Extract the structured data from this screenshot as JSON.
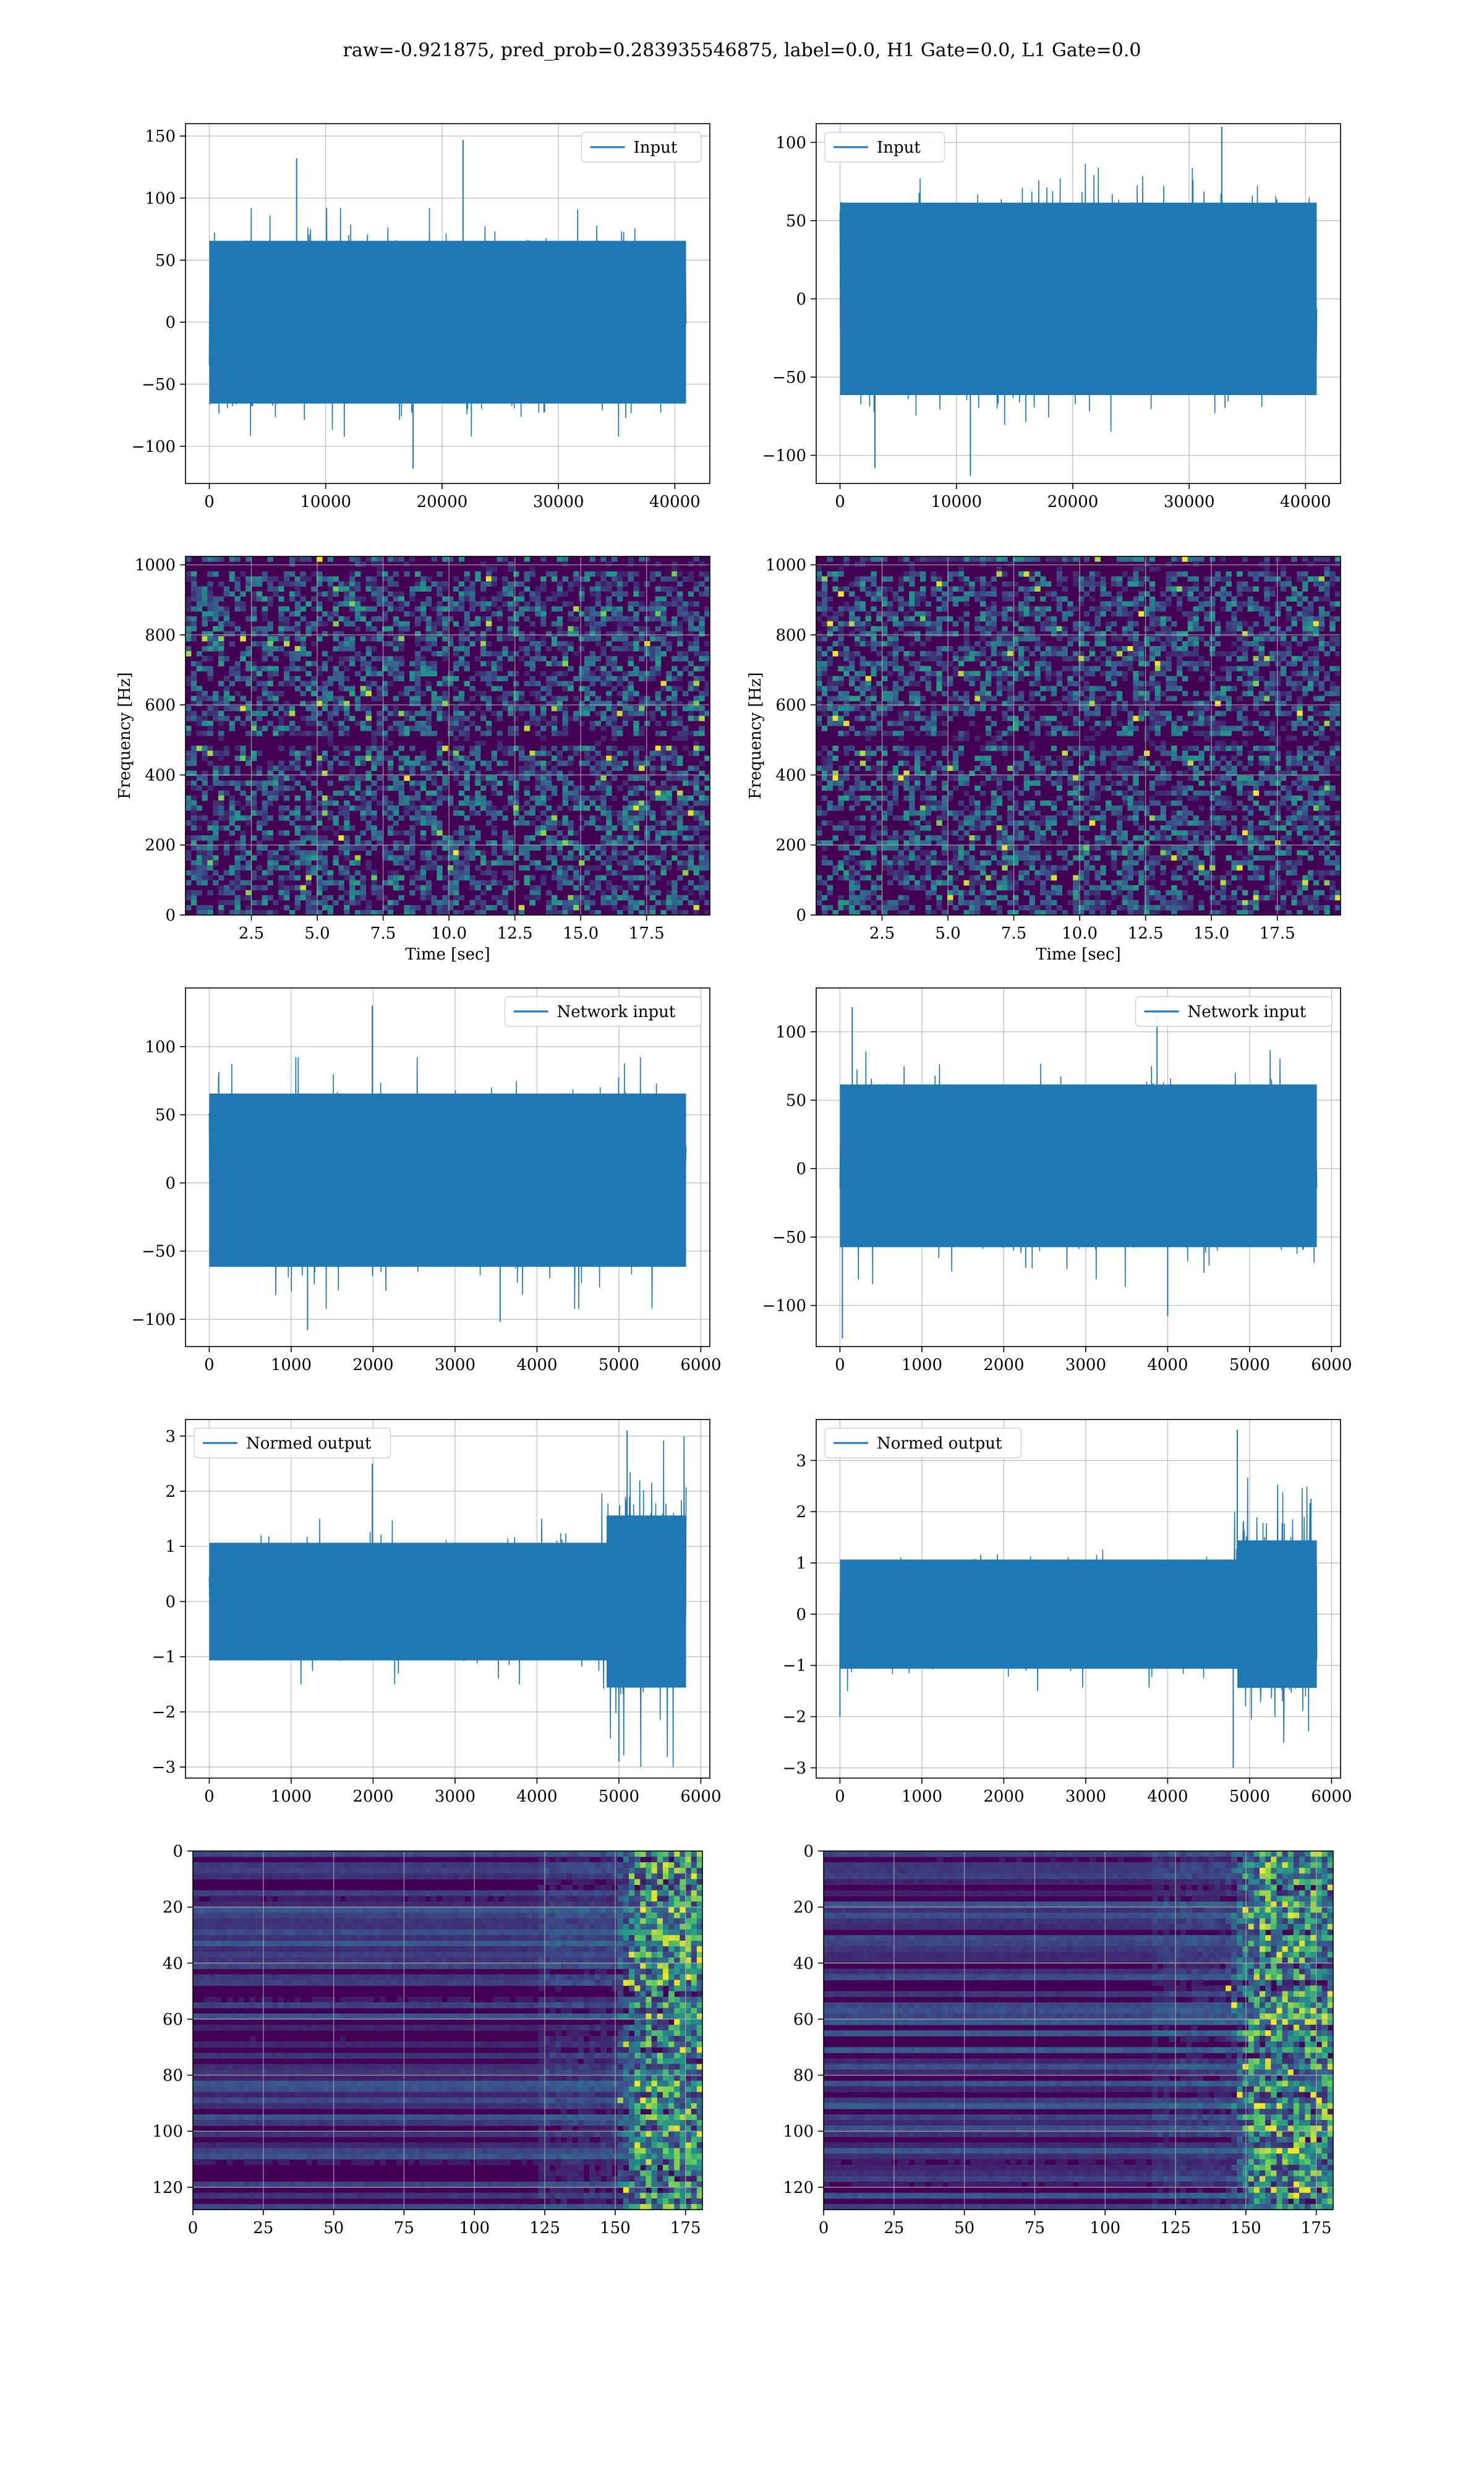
{
  "figure": {
    "title": "raw=-0.921875, pred_prob=0.283935546875, label=0.0, H1 Gate=0.0, L1 Gate=0.0"
  },
  "colors": {
    "line": "#1f77b4",
    "grid": "#b0b0b0",
    "heat_low": "#440154",
    "heat_mid": "#31688e",
    "heat_high": "#35b779",
    "heat_peak": "#fde725"
  },
  "chart_data": [
    {
      "type": "line",
      "panel": "row1-left",
      "legend": "Input",
      "legend_loc": "upper right",
      "xlim": [
        -2048,
        43008
      ],
      "ylim": [
        -130,
        160
      ],
      "xticks": [
        0,
        10000,
        20000,
        30000,
        40000
      ],
      "yticks": [
        -100,
        -50,
        0,
        50,
        100,
        150
      ],
      "x_range": [
        0,
        40960
      ],
      "samples": 1400,
      "envelope": [
        -80,
        80
      ],
      "sigma": 30,
      "peaks": [
        {
          "x": 21800,
          "y": 147
        },
        {
          "x": 7500,
          "y": 132
        },
        {
          "x": 17500,
          "y": -118
        }
      ],
      "grid": true,
      "seed": 11,
      "xlabel": "",
      "ylabel": ""
    },
    {
      "type": "line",
      "panel": "row1-right",
      "legend": "Input",
      "legend_loc": "upper left",
      "xlim": [
        -2048,
        43008
      ],
      "ylim": [
        -118,
        112
      ],
      "xticks": [
        0,
        10000,
        20000,
        30000,
        40000
      ],
      "yticks": [
        -100,
        -50,
        0,
        50,
        100
      ],
      "x_range": [
        0,
        40960
      ],
      "samples": 1400,
      "envelope": [
        -75,
        75
      ],
      "sigma": 28,
      "peaks": [
        {
          "x": 32800,
          "y": 110
        },
        {
          "x": 11200,
          "y": -113
        },
        {
          "x": 3000,
          "y": -108
        }
      ],
      "grid": true,
      "seed": 23,
      "xlabel": "",
      "ylabel": ""
    },
    {
      "type": "heatmap",
      "panel": "row2-left",
      "xlim": [
        0,
        19.9
      ],
      "ylim": [
        0,
        1024
      ],
      "xticks": [
        2.5,
        5.0,
        7.5,
        10.0,
        12.5,
        15.0,
        17.5
      ],
      "yticks": [
        0,
        200,
        400,
        600,
        800,
        1000
      ],
      "xlabel": "Time [sec]",
      "ylabel": "Frequency [Hz]",
      "kind": "spectrogram",
      "grid": true,
      "seed": 5
    },
    {
      "type": "heatmap",
      "panel": "row2-right",
      "xlim": [
        0,
        19.9
      ],
      "ylim": [
        0,
        1024
      ],
      "xticks": [
        2.5,
        5.0,
        7.5,
        10.0,
        12.5,
        15.0,
        17.5
      ],
      "yticks": [
        0,
        200,
        400,
        600,
        800,
        1000
      ],
      "xlabel": "Time [sec]",
      "ylabel": "Frequency [Hz]",
      "kind": "spectrogram",
      "grid": true,
      "seed": 9
    },
    {
      "type": "line",
      "panel": "row3-left",
      "legend": "Network input",
      "legend_loc": "upper right",
      "xlim": [
        -290,
        6110
      ],
      "ylim": [
        -120,
        143
      ],
      "xticks": [
        0,
        1000,
        2000,
        3000,
        4000,
        5000,
        6000
      ],
      "yticks": [
        -100,
        -50,
        0,
        50,
        100
      ],
      "x_range": [
        0,
        5820
      ],
      "samples": 1400,
      "envelope": [
        -75,
        80
      ],
      "sigma": 28,
      "peaks": [
        {
          "x": 1990,
          "y": 130
        },
        {
          "x": 1200,
          "y": -108
        },
        {
          "x": 3550,
          "y": -102
        }
      ],
      "grid": true,
      "seed": 37,
      "xlabel": "",
      "ylabel": ""
    },
    {
      "type": "line",
      "panel": "row3-right",
      "legend": "Network input",
      "legend_loc": "upper right",
      "xlim": [
        -290,
        6110
      ],
      "ylim": [
        -130,
        132
      ],
      "xticks": [
        0,
        1000,
        2000,
        3000,
        4000,
        5000,
        6000
      ],
      "yticks": [
        -100,
        -50,
        0,
        50,
        100
      ],
      "x_range": [
        0,
        5820
      ],
      "samples": 1400,
      "envelope": [
        -70,
        75
      ],
      "sigma": 26,
      "peaks": [
        {
          "x": 30,
          "y": -124
        },
        {
          "x": 150,
          "y": 118
        },
        {
          "x": 3870,
          "y": 112
        },
        {
          "x": 4000,
          "y": -108
        }
      ],
      "grid": true,
      "seed": 41,
      "xlabel": "",
      "ylabel": ""
    },
    {
      "type": "line",
      "panel": "row4-left",
      "legend": "Normed output",
      "legend_loc": "upper left",
      "xlim": [
        -290,
        6110
      ],
      "ylim": [
        -3.2,
        3.3
      ],
      "xticks": [
        0,
        1000,
        2000,
        3000,
        4000,
        5000,
        6000
      ],
      "yticks": [
        -3,
        -2,
        -1,
        0,
        1,
        2,
        3
      ],
      "x_range": [
        0,
        5820
      ],
      "samples": 1400,
      "envelope": [
        -1.3,
        1.3
      ],
      "sigma": 0.45,
      "burst": {
        "x0": 4700,
        "x1": 5820,
        "amp": 2.6
      },
      "peaks": [
        {
          "x": 1990,
          "y": 2.5
        },
        {
          "x": 5100,
          "y": 3.1
        },
        {
          "x": 5000,
          "y": -2.9
        }
      ],
      "grid": true,
      "seed": 53,
      "xlabel": "",
      "ylabel": ""
    },
    {
      "type": "line",
      "panel": "row4-right",
      "legend": "Normed output",
      "legend_loc": "upper left",
      "xlim": [
        -290,
        6110
      ],
      "ylim": [
        -3.2,
        3.8
      ],
      "xticks": [
        0,
        1000,
        2000,
        3000,
        4000,
        5000,
        6000
      ],
      "yticks": [
        -3,
        -2,
        -1,
        0,
        1,
        2,
        3
      ],
      "x_range": [
        0,
        5820
      ],
      "samples": 1400,
      "envelope": [
        -1.3,
        1.3
      ],
      "sigma": 0.45,
      "burst": {
        "x0": 4700,
        "x1": 5820,
        "amp": 2.4
      },
      "peaks": [
        {
          "x": 4850,
          "y": 3.6
        },
        {
          "x": 4800,
          "y": -3.0
        },
        {
          "x": 0,
          "y": -2.0
        }
      ],
      "grid": true,
      "seed": 61,
      "xlabel": "",
      "ylabel": ""
    },
    {
      "type": "heatmap",
      "panel": "row5-left",
      "xlim": [
        0,
        181
      ],
      "ylim": [
        128,
        0
      ],
      "xticks": [
        0,
        25,
        50,
        75,
        100,
        125,
        150,
        175
      ],
      "yticks": [
        0,
        20,
        40,
        60,
        80,
        100,
        120
      ],
      "xlabel": "",
      "ylabel": "",
      "kind": "network",
      "burst_start": 148,
      "grid": true,
      "seed": 71
    },
    {
      "type": "heatmap",
      "panel": "row5-right",
      "xlim": [
        0,
        181
      ],
      "ylim": [
        128,
        0
      ],
      "xticks": [
        0,
        25,
        50,
        75,
        100,
        125,
        150,
        175
      ],
      "yticks": [
        0,
        20,
        40,
        60,
        80,
        100,
        120
      ],
      "xlabel": "",
      "ylabel": "",
      "kind": "network",
      "burst_start": 142,
      "grid": true,
      "seed": 83
    }
  ]
}
